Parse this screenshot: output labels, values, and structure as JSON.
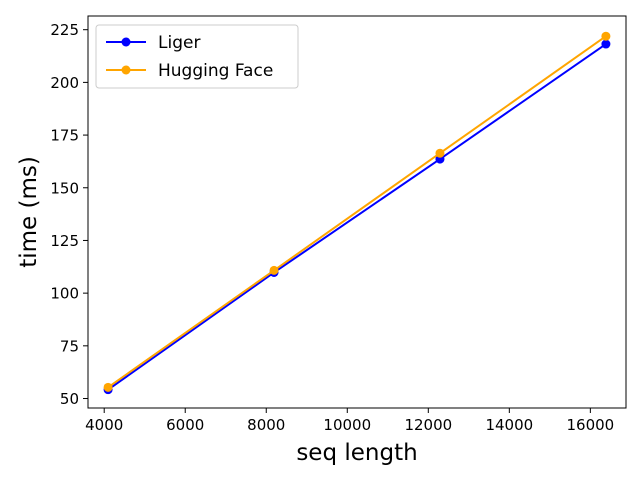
{
  "chart_data": {
    "type": "line",
    "title": "",
    "xlabel": "seq length",
    "ylabel": "time (ms)",
    "x": [
      4096,
      8192,
      12288,
      16384
    ],
    "xlim": [
      3600,
      16880
    ],
    "ylim": [
      45.5,
      231.5
    ],
    "x_ticks": [
      4000,
      6000,
      8000,
      10000,
      12000,
      14000,
      16000
    ],
    "y_ticks": [
      50,
      75,
      100,
      125,
      150,
      175,
      200,
      225
    ],
    "grid": false,
    "legend_position": "top-left",
    "series": [
      {
        "name": "Liger",
        "color": "#0000ff",
        "marker": "circle",
        "values": [
          54.2,
          109.8,
          163.6,
          218.2
        ]
      },
      {
        "name": "Hugging Face",
        "color": "#ffa500",
        "marker": "circle",
        "values": [
          55.3,
          110.8,
          166.4,
          221.9
        ]
      }
    ]
  }
}
